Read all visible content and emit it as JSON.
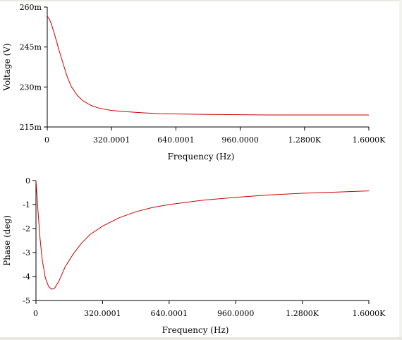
{
  "chart_data": [
    {
      "type": "line",
      "xlabel": "Frequency (Hz)",
      "ylabel": "Voltage (V)",
      "xlim": [
        0,
        1600
      ],
      "ylim": [
        0.215,
        0.26
      ],
      "x_tick_labels": [
        "0",
        "320.0001",
        "640.0001",
        "960.0000",
        "1.2800K",
        "1.6000K"
      ],
      "y_tick_labels": [
        "215m",
        "230m",
        "245m",
        "260m"
      ],
      "grid": false,
      "series": [
        {
          "color": "#cc0000",
          "x": [
            0,
            10,
            20,
            40,
            60,
            80,
            100,
            120,
            150,
            180,
            220,
            260,
            320,
            400,
            480,
            560,
            640,
            800,
            960,
            1120,
            1280,
            1440,
            1600
          ],
          "y": [
            0.2566,
            0.2555,
            0.2538,
            0.2488,
            0.2435,
            0.2385,
            0.2337,
            0.2301,
            0.2268,
            0.2247,
            0.223,
            0.222,
            0.2212,
            0.2207,
            0.2203,
            0.22,
            0.2199,
            0.2197,
            0.2196,
            0.2195,
            0.2195,
            0.2195,
            0.2195
          ]
        }
      ]
    },
    {
      "type": "line",
      "xlabel": "Frequency (Hz)",
      "ylabel": "Phase (deg)",
      "xlim": [
        0,
        1600
      ],
      "ylim": [
        -5,
        0
      ],
      "x_tick_labels": [
        "0",
        "320.0001",
        "640.0001",
        "960.0000",
        "1.2800K",
        "1.6000K"
      ],
      "y_tick_labels": [
        "-5",
        "-4",
        "-3",
        "-2",
        "-1",
        "0"
      ],
      "grid": false,
      "series": [
        {
          "color": "#cc0000",
          "x": [
            0,
            5,
            10,
            20,
            30,
            45,
            60,
            75,
            90,
            110,
            140,
            180,
            220,
            260,
            320,
            400,
            480,
            560,
            640,
            800,
            960,
            1120,
            1280,
            1440,
            1600
          ],
          "y": [
            0,
            -0.6,
            -1.3,
            -2.45,
            -3.3,
            -4.05,
            -4.4,
            -4.53,
            -4.48,
            -4.2,
            -3.6,
            -3.05,
            -2.6,
            -2.25,
            -1.9,
            -1.55,
            -1.3,
            -1.12,
            -1.0,
            -0.82,
            -0.7,
            -0.6,
            -0.53,
            -0.48,
            -0.43
          ]
        }
      ]
    }
  ]
}
